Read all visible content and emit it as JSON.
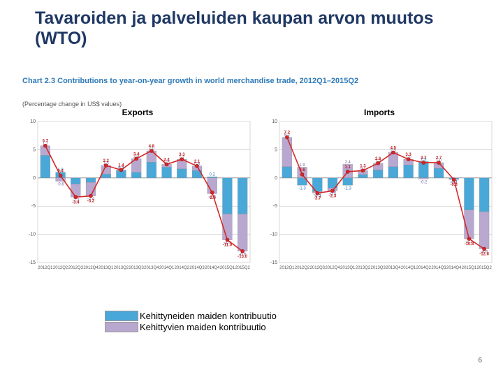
{
  "title": "Tavaroiden ja palveluiden kaupan arvon muutos (WTO)",
  "chart_caption": "Chart 2.3 Contributions to year-on-year growth in world merchandise trade, 2012Q1–2015Q2",
  "chart_subcaption": "(Percentage change in US$ values)",
  "page_number": "6",
  "legend": {
    "developed": {
      "label": "Kehittyneiden maiden kontribuutio",
      "color": "#4aa8d8"
    },
    "developing": {
      "label": "Kehittyvien maiden kontribuutio",
      "color": "#b8a8d0"
    }
  },
  "style": {
    "line_color": "#d62728",
    "marker_radius": 2.5,
    "marker_stroke": "#a01818",
    "label_color_dev": "#2e7ab8",
    "label_color_devp": "#7a6aa0",
    "label_color_total": "#c02020",
    "grid_color": "#b0b0b0",
    "bg": "#ffffff",
    "tick_fontsize": 7,
    "xlabel_fontsize": 6,
    "val_fontsize": 6,
    "panel_title_fontsize": 12,
    "y_min": -15,
    "y_max": 10,
    "y_step": 5
  },
  "x_labels": [
    "2012Q1",
    "2012Q2",
    "2012Q3",
    "2012Q4",
    "2013Q1",
    "2013Q2",
    "2013Q3",
    "2013Q4",
    "2014Q1",
    "2014Q2",
    "2014Q3",
    "2014Q4",
    "2015Q1",
    "2015Q2"
  ],
  "exports": {
    "title": "Exports",
    "developed": [
      4.0,
      1.0,
      -1.1,
      -0.8,
      0.7,
      1.3,
      1.0,
      2.8,
      1.9,
      1.6,
      1.3,
      0.2,
      -6.4,
      -6.4
    ],
    "developing": [
      1.7,
      -0.6,
      -2.3,
      -2.4,
      1.5,
      0.1,
      2.4,
      2.0,
      0.5,
      1.7,
      0.8,
      -2.8,
      -4.6,
      -6.6
    ],
    "total": [
      5.7,
      0.4,
      -3.4,
      -3.2,
      2.2,
      1.4,
      3.4,
      4.8,
      2.4,
      3.3,
      2.1,
      -2.6,
      -11.0,
      -13.0
    ]
  },
  "imports": {
    "title": "Imports",
    "developed": [
      2.0,
      -1.3,
      -2.4,
      -1.8,
      -1.3,
      0.6,
      1.4,
      2.0,
      2.3,
      2.9,
      1.7,
      -0.2,
      -5.7,
      -6.0
    ],
    "developing": [
      5.2,
      1.9,
      -0.3,
      -0.5,
      2.4,
      0.7,
      1.2,
      2.5,
      1.0,
      -0.2,
      1.0,
      -0.1,
      -5.1,
      -6.6
    ],
    "total": [
      7.2,
      0.6,
      -2.7,
      -2.3,
      1.1,
      1.3,
      2.6,
      4.5,
      3.3,
      2.7,
      2.7,
      -0.3,
      -10.8,
      -12.6
    ]
  }
}
